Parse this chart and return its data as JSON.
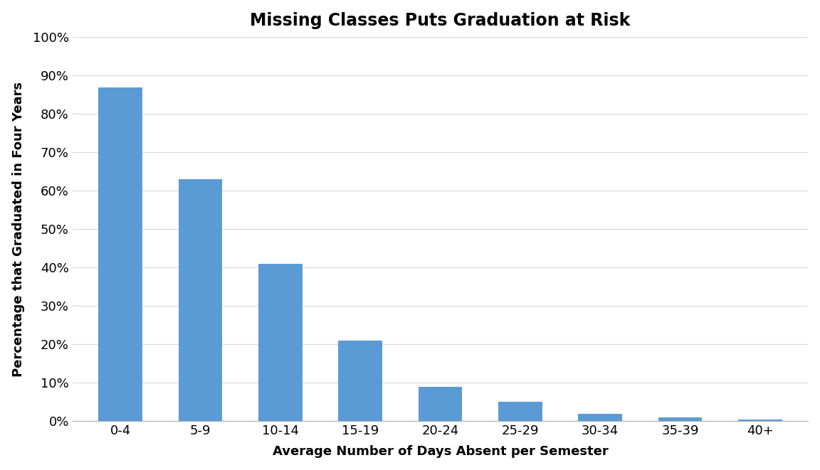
{
  "title": "Missing Classes Puts Graduation at Risk",
  "categories": [
    "0-4",
    "5-9",
    "10-14",
    "15-19",
    "20-24",
    "25-29",
    "30-34",
    "35-39",
    "40+"
  ],
  "values": [
    0.87,
    0.63,
    0.41,
    0.21,
    0.09,
    0.05,
    0.02,
    0.01,
    0.005
  ],
  "bar_color": "#5b9bd5",
  "xlabel": "Average Number of Days Absent per Semester",
  "ylabel": "Percentage that Graduated in Four Years",
  "ylim": [
    0,
    1.0
  ],
  "yticks": [
    0.0,
    0.1,
    0.2,
    0.3,
    0.4,
    0.5,
    0.6,
    0.7,
    0.8,
    0.9,
    1.0
  ],
  "background_color": "#ffffff",
  "title_fontsize": 17,
  "label_fontsize": 13,
  "tick_fontsize": 13,
  "grid_color": "#d9d9d9",
  "bar_width": 0.55
}
